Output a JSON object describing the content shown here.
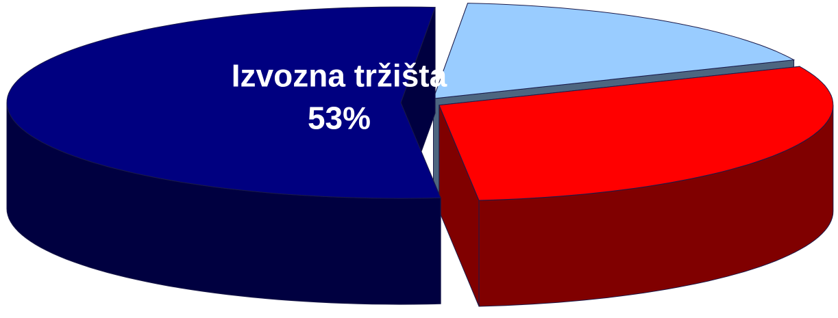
{
  "chart_data": {
    "type": "pie3d",
    "categories": [
      null,
      null,
      "Izvozna tržišta"
    ],
    "values": [
      17,
      30,
      53
    ],
    "value_labels": [
      null,
      null,
      "53%"
    ],
    "colors": [
      "#99ccff",
      "#ff0000",
      "#000080"
    ]
  }
}
